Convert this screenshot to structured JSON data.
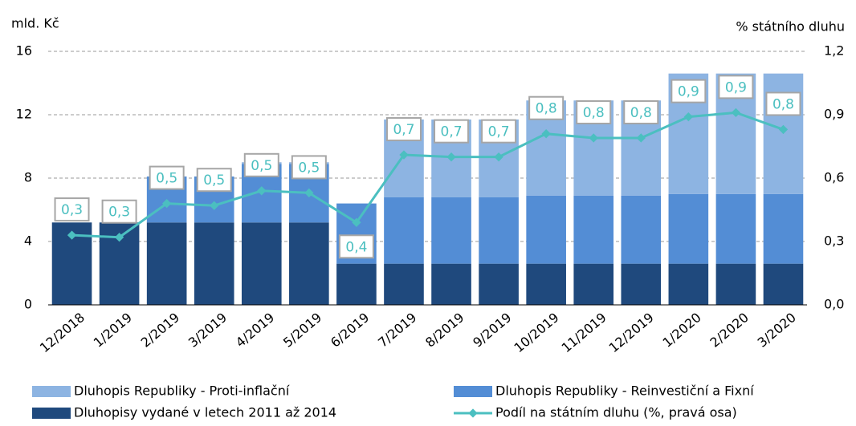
{
  "chart_data": {
    "type": "stacked_bar_line",
    "y_label": "mld. Kč",
    "y2_label": "% státního dluhu",
    "categories": [
      "12/2018",
      "1/2019",
      "2/2019",
      "3/2019",
      "4/2019",
      "5/2019",
      "6/2019",
      "7/2019",
      "8/2019",
      "9/2019",
      "10/2019",
      "11/2019",
      "12/2019",
      "1/2020",
      "2/2020",
      "3/2020"
    ],
    "series": [
      {
        "name": "Dluhopisy vydané v letech 2011 až 2014",
        "color": "#1f497d",
        "values": [
          5.2,
          5.2,
          5.2,
          5.2,
          5.2,
          5.2,
          2.6,
          2.6,
          2.6,
          2.6,
          2.6,
          2.6,
          2.6,
          2.6,
          2.6,
          2.6
        ]
      },
      {
        "name": "Dluhopis Republiky - Reinvestiční a Fixní",
        "color": "#538dd5",
        "values": [
          0,
          0,
          2.9,
          2.9,
          3.7,
          3.7,
          3.8,
          4.2,
          4.2,
          4.2,
          4.3,
          4.3,
          4.3,
          4.4,
          4.4,
          4.4
        ]
      },
      {
        "name": "Dluhopis Republiky - Proti-inflační",
        "color": "#8db4e2",
        "values": [
          0,
          0,
          0,
          0,
          0.1,
          0.1,
          0,
          4.9,
          4.9,
          4.9,
          6.0,
          6.0,
          6.0,
          7.6,
          7.6,
          7.6
        ]
      },
      {
        "name": "Podíl na státním dluhu (%, pravá osa)",
        "color": "#4bbfc0",
        "axis": "y2",
        "type": "line",
        "values": [
          0.33,
          0.32,
          0.48,
          0.47,
          0.54,
          0.53,
          0.39,
          0.71,
          0.7,
          0.7,
          0.81,
          0.79,
          0.79,
          0.89,
          0.91,
          0.83
        ],
        "value_labels": [
          "0,3",
          "0,3",
          "0,5",
          "0,5",
          "0,5",
          "0,5",
          "0,4",
          "0,7",
          "0,7",
          "0,7",
          "0,8",
          "0,8",
          "0,8",
          "0,9",
          "0,9",
          "0,8"
        ]
      }
    ],
    "ylim": [
      0,
      16
    ],
    "yticks": [
      0,
      4,
      8,
      12,
      16
    ],
    "y2lim": [
      0,
      1.2
    ],
    "y2ticks": [
      {
        "value": 0,
        "label": "0,0"
      },
      {
        "value": 0.3,
        "label": "0,3"
      },
      {
        "value": 0.6,
        "label": "0,6"
      },
      {
        "value": 0.9,
        "label": "0,9"
      },
      {
        "value": 1.2,
        "label": "1,2"
      }
    ],
    "grid": true,
    "legend": "bottom"
  }
}
